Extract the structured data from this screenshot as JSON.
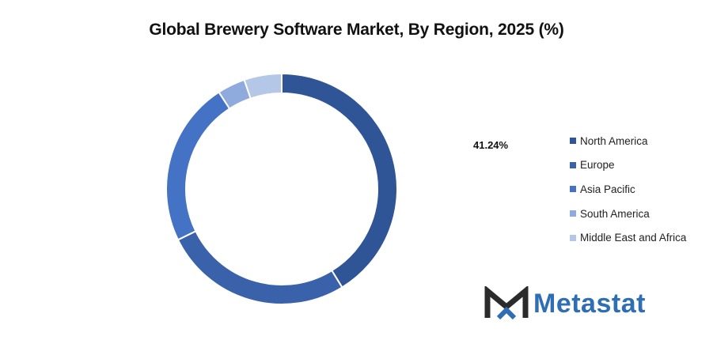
{
  "chart_data": {
    "type": "pie",
    "title": "Global Brewery Software Market, By Region, 2025 (%)",
    "categories": [
      "North America",
      "Europe",
      "Asia Pacific",
      "South America",
      "Middle East and Africa"
    ],
    "values": [
      41.24,
      26.5,
      23.1,
      3.9,
      5.26
    ],
    "colors": [
      "#2f5597",
      "#3a62ab",
      "#4472c4",
      "#8faadc",
      "#b4c7e7"
    ],
    "annotations": [
      "41.24%"
    ],
    "legend_position": "right",
    "donut": true
  },
  "branding": {
    "logo_icon": "metastat-m-logo-icon",
    "name": "Metastat",
    "color": "#2f6eb5"
  }
}
